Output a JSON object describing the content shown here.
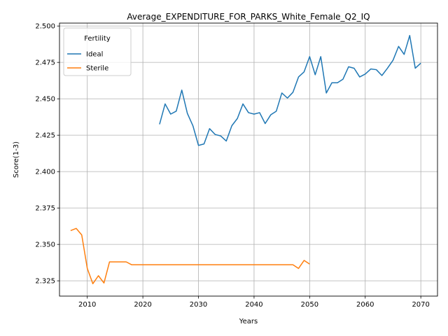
{
  "chart_data": {
    "type": "line",
    "title": "Average_EXPENDITURE_FOR_PARKS_White_Female_Q2_IQ",
    "xlabel": "Years",
    "ylabel": "Score(1-3)",
    "xlim": [
      2005.0,
      2073.0
    ],
    "ylim": [
      2.3145,
      2.502
    ],
    "xticks": [
      2010,
      2020,
      2030,
      2040,
      2050,
      2060,
      2070
    ],
    "xtick_labels": [
      "2010",
      "2020",
      "2030",
      "2040",
      "2050",
      "2060",
      "2070"
    ],
    "yticks": [
      2.325,
      2.35,
      2.375,
      2.4,
      2.425,
      2.45,
      2.475,
      2.5
    ],
    "ytick_labels": [
      "2.325",
      "2.350",
      "2.375",
      "2.400",
      "2.425",
      "2.450",
      "2.475",
      "2.500"
    ],
    "grid": true,
    "legend": {
      "title": "Fertility",
      "placement": "top-left"
    },
    "series": [
      {
        "name": "Ideal",
        "color": "#1f77b4",
        "x": [
          2023,
          2024,
          2025,
          2026,
          2027,
          2028,
          2029,
          2030,
          2031,
          2032,
          2033,
          2034,
          2035,
          2036,
          2037,
          2038,
          2039,
          2040,
          2041,
          2042,
          2043,
          2044,
          2045,
          2046,
          2047,
          2048,
          2049,
          2050,
          2051,
          2052,
          2053,
          2054,
          2055,
          2056,
          2057,
          2058,
          2059,
          2060,
          2061,
          2062,
          2063,
          2064,
          2065,
          2066,
          2067,
          2068,
          2069,
          2070
        ],
        "y": [
          2.4325,
          2.4465,
          2.4395,
          2.4415,
          2.456,
          2.44,
          2.4315,
          2.418,
          2.419,
          2.4295,
          2.4255,
          2.4245,
          2.421,
          2.4315,
          2.4365,
          2.4465,
          2.4405,
          2.4395,
          2.4405,
          2.433,
          2.439,
          2.4415,
          2.454,
          2.4505,
          2.4545,
          2.465,
          2.4685,
          2.479,
          2.4665,
          2.479,
          2.454,
          2.461,
          2.461,
          2.4635,
          2.472,
          2.471,
          2.465,
          2.467,
          2.4705,
          2.47,
          2.466,
          2.471,
          2.4765,
          2.486,
          2.4805,
          2.4935,
          2.471,
          2.4745
        ]
      },
      {
        "name": "Sterile",
        "color": "#ff7f0e",
        "x": [
          2007,
          2008,
          2009,
          2010,
          2011,
          2012,
          2013,
          2014,
          2015,
          2016,
          2017,
          2018,
          2019,
          2020,
          2021,
          2022,
          2023,
          2024,
          2025,
          2026,
          2027,
          2028,
          2029,
          2030,
          2031,
          2032,
          2033,
          2034,
          2035,
          2036,
          2037,
          2038,
          2039,
          2040,
          2041,
          2042,
          2043,
          2044,
          2045,
          2046,
          2047,
          2048,
          2049,
          2050
        ],
        "y": [
          2.3595,
          2.361,
          2.3565,
          2.3335,
          2.323,
          2.3285,
          2.3235,
          2.338,
          2.338,
          2.338,
          2.338,
          2.336,
          2.336,
          2.336,
          2.336,
          2.336,
          2.336,
          2.336,
          2.336,
          2.336,
          2.336,
          2.336,
          2.336,
          2.336,
          2.336,
          2.336,
          2.336,
          2.336,
          2.336,
          2.336,
          2.336,
          2.336,
          2.336,
          2.336,
          2.336,
          2.336,
          2.336,
          2.336,
          2.336,
          2.336,
          2.336,
          2.3335,
          2.339,
          2.3365
        ]
      }
    ]
  }
}
